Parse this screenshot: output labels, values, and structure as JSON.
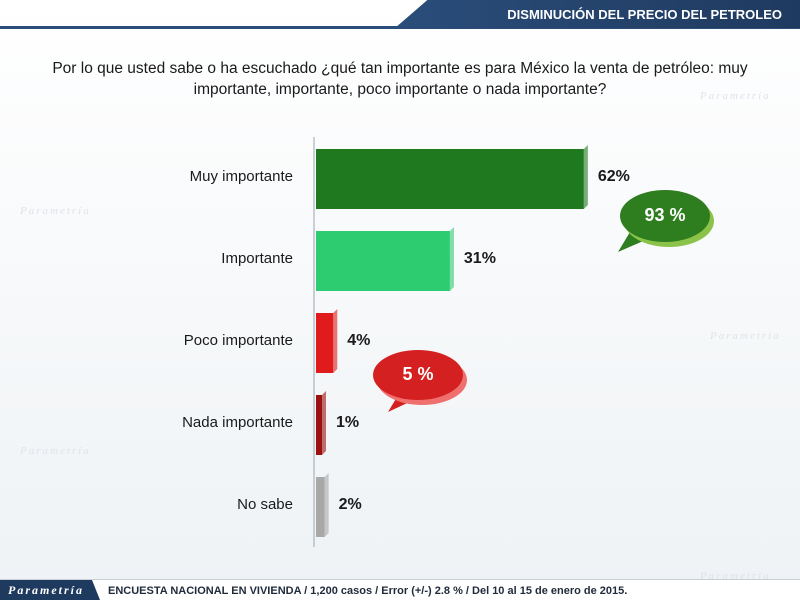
{
  "header": {
    "title": "DISMINUCIÓN DEL PRECIO DEL PETROLEO"
  },
  "question": "Por lo que usted sabe o ha escuchado ¿qué tan importante es para México la venta de petróleo: muy importante, importante, poco importante o nada importante?",
  "chart_data": {
    "type": "bar",
    "orientation": "horizontal",
    "categories": [
      "Muy importante",
      "Importante",
      "Poco importante",
      "Nada importante",
      "No sabe"
    ],
    "values": [
      62,
      31,
      4,
      1,
      2
    ],
    "value_labels": [
      "62%",
      "31%",
      "4%",
      "1%",
      "2%"
    ],
    "colors": [
      "#1f7a1f",
      "#2ecc71",
      "#e01b1b",
      "#9b1111",
      "#a8a8a8"
    ],
    "annotations": [
      {
        "text": "93 %",
        "color": "#2e7d1e"
      },
      {
        "text": "5 %",
        "color": "#d42020"
      }
    ],
    "xlim": [
      0,
      100
    ],
    "grid": false
  },
  "footer": {
    "brand": "Parametría",
    "note": "ENCUESTA NACIONAL EN VIVIENDA / 1,200 casos / Error (+/-) 2.8 % / Del 10 al 15 de enero de 2015."
  }
}
